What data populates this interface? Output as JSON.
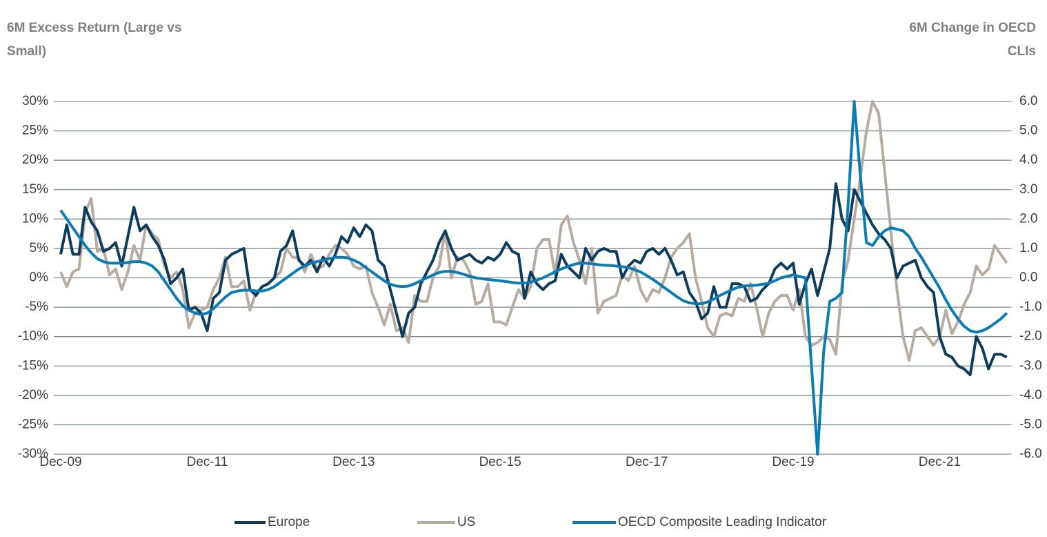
{
  "chart_data": {
    "type": "line",
    "y_label": "6M Excess Return (Large vs Small)",
    "y2_label": "6M Change in OECD CLIs",
    "categories": [
      "Dec-09",
      null,
      null,
      null,
      null,
      null,
      null,
      null,
      null,
      null,
      null,
      null,
      null,
      null,
      null,
      null,
      null,
      null,
      null,
      null,
      null,
      null,
      null,
      null,
      "Dec-11",
      null,
      null,
      null,
      null,
      null,
      null,
      null,
      null,
      null,
      null,
      null,
      null,
      null,
      null,
      null,
      null,
      null,
      null,
      null,
      null,
      null,
      null,
      null,
      "Dec-13",
      null,
      null,
      null,
      null,
      null,
      null,
      null,
      null,
      null,
      null,
      null,
      null,
      null,
      null,
      null,
      null,
      null,
      null,
      null,
      null,
      null,
      null,
      null,
      "Dec-15",
      null,
      null,
      null,
      null,
      null,
      null,
      null,
      null,
      null,
      null,
      null,
      null,
      null,
      null,
      null,
      null,
      null,
      null,
      null,
      null,
      null,
      null,
      null,
      "Dec-17",
      null,
      null,
      null,
      null,
      null,
      null,
      null,
      null,
      null,
      null,
      null,
      null,
      null,
      null,
      null,
      null,
      null,
      null,
      null,
      null,
      null,
      null,
      null,
      "Dec-19",
      null,
      null,
      null,
      null,
      null,
      null,
      null,
      null,
      null,
      null,
      null,
      null,
      null,
      null,
      null,
      null,
      null,
      null,
      null,
      null,
      null,
      null,
      null,
      "Dec-21",
      null,
      null,
      null,
      null,
      null,
      null,
      null,
      null,
      null,
      null,
      null
    ],
    "series": [
      {
        "name": "Europe",
        "color": "#0d3c5c",
        "values": [
          4,
          9,
          4,
          4,
          12,
          9.5,
          8,
          4.5,
          5,
          6,
          2,
          7,
          12,
          8,
          9,
          7,
          5.5,
          3,
          -1,
          0,
          1.5,
          -5.5,
          -5,
          -6,
          -9,
          -3.5,
          -2.5,
          3,
          4,
          4.5,
          5,
          -2,
          -3,
          -1.5,
          -1,
          0,
          4.5,
          5.5,
          8,
          3,
          2,
          3,
          1,
          3.5,
          2,
          4,
          7,
          6,
          8.5,
          7,
          9,
          8,
          3,
          2,
          -2,
          -6,
          -10,
          -6,
          -5,
          -1,
          1,
          3,
          6,
          8,
          5,
          3,
          3.5,
          4,
          3,
          2.5,
          3.5,
          3,
          4,
          6,
          4.5,
          4,
          -3.5,
          1,
          -1,
          -2,
          -1,
          -0.5,
          4,
          2,
          1,
          0,
          5,
          3,
          4.5,
          5,
          4.5,
          4.5,
          0,
          2,
          3,
          2.5,
          4.5,
          5,
          4,
          5,
          3,
          0.5,
          1,
          -2.5,
          -4,
          -7,
          -6,
          -1.5,
          -5,
          -5,
          -1,
          -1,
          -1.5,
          -4,
          -3.5,
          -2,
          -1,
          1.5,
          2.5,
          1.5,
          2.5,
          -4.5,
          -1,
          1.5,
          -3,
          1,
          5,
          16,
          10,
          8,
          15,
          13,
          11,
          9,
          7.5,
          6.5,
          5,
          0,
          2,
          2.5,
          3,
          0,
          -1.5,
          -2.5,
          -10,
          -13,
          -13.5,
          -15,
          -15.5,
          -16.5,
          -10,
          -12,
          -15.5,
          -13,
          -13,
          -13.5
        ]
      },
      {
        "name": "US",
        "color": "#b7aca2",
        "values": [
          1,
          -1.5,
          1,
          1.5,
          11,
          13.5,
          4.5,
          5,
          0.5,
          1.5,
          -2,
          1,
          5.5,
          3,
          9,
          7.5,
          6.5,
          2,
          0,
          1,
          -2,
          -8.5,
          -6,
          -5.5,
          -5,
          -2,
          0,
          3.5,
          -1.5,
          -1.5,
          -0.5,
          -5.5,
          -2.5,
          -1.5,
          -1,
          0,
          1,
          5,
          3.5,
          3.5,
          1,
          4,
          1.5,
          2,
          4,
          5.5,
          5,
          4,
          2,
          1.5,
          2,
          -2.5,
          -5,
          -8,
          -4.5,
          -9,
          -8.5,
          -11,
          -3,
          -4,
          -4,
          0,
          2,
          8,
          0,
          3.5,
          3,
          1,
          -4.5,
          -4,
          -1,
          -7.5,
          -7.5,
          -8,
          -5,
          -2,
          -3.5,
          -1.5,
          5,
          6.5,
          6.5,
          0.5,
          9,
          10.5,
          6,
          3,
          -1,
          5,
          -6,
          -4,
          -3.5,
          -3,
          0.5,
          -0.5,
          2,
          -2,
          -4,
          -2,
          -2.5,
          0,
          3.5,
          5,
          6,
          7.5,
          0,
          -4,
          -8.5,
          -10,
          -6.5,
          -6,
          -6.5,
          -3.5,
          -4,
          -1,
          -5,
          -10,
          -6,
          -4,
          -3,
          -3,
          -5.5,
          -2,
          -10,
          -11.5,
          -11,
          -10,
          -10.5,
          -13,
          -1,
          3,
          10,
          17,
          25,
          30,
          28,
          18,
          8,
          -2,
          -10,
          -14,
          -9,
          -8.5,
          -10,
          -11.5,
          -10,
          -5.5,
          -9.5,
          -7.5,
          -4.5,
          -2.5,
          2,
          0.5,
          1.5,
          5.5,
          4,
          2.5
        ]
      },
      {
        "name": "OECD Composite Leading Indicator",
        "color": "#0b7bb1",
        "axis": "y2",
        "values": [
          2.3,
          2.0,
          1.7,
          1.4,
          1.1,
          0.85,
          0.65,
          0.55,
          0.5,
          0.5,
          0.5,
          0.52,
          0.55,
          0.55,
          0.5,
          0.4,
          0.2,
          -0.1,
          -0.4,
          -0.7,
          -0.95,
          -1.1,
          -1.2,
          -1.25,
          -1.2,
          -1.05,
          -0.85,
          -0.65,
          -0.5,
          -0.45,
          -0.42,
          -0.42,
          -0.45,
          -0.45,
          -0.4,
          -0.3,
          -0.15,
          0,
          0.15,
          0.3,
          0.4,
          0.5,
          0.55,
          0.6,
          0.65,
          0.7,
          0.7,
          0.68,
          0.6,
          0.5,
          0.35,
          0.2,
          0.05,
          -0.1,
          -0.22,
          -0.28,
          -0.3,
          -0.28,
          -0.2,
          -0.1,
          0,
          0.1,
          0.18,
          0.22,
          0.22,
          0.18,
          0.12,
          0.05,
          0,
          -0.03,
          -0.06,
          -0.08,
          -0.1,
          -0.13,
          -0.16,
          -0.18,
          -0.18,
          -0.15,
          -0.08,
          0,
          0.1,
          0.2,
          0.3,
          0.38,
          0.45,
          0.5,
          0.5,
          0.48,
          0.45,
          0.43,
          0.42,
          0.4,
          0.38,
          0.35,
          0.28,
          0.2,
          0.08,
          -0.05,
          -0.2,
          -0.35,
          -0.5,
          -0.65,
          -0.78,
          -0.85,
          -0.88,
          -0.88,
          -0.82,
          -0.72,
          -0.6,
          -0.5,
          -0.4,
          -0.32,
          -0.28,
          -0.26,
          -0.25,
          -0.22,
          -0.18,
          -0.1,
          0,
          0.05,
          0.1,
          0.05,
          0,
          -3,
          -6,
          -2.5,
          -0.8,
          -0.7,
          -0.5,
          2.5,
          6,
          3.5,
          1.2,
          1.1,
          1.4,
          1.6,
          1.7,
          1.65,
          1.6,
          1.4,
          1,
          0.7,
          0.35,
          0,
          -0.35,
          -0.75,
          -1.1,
          -1.4,
          -1.65,
          -1.8,
          -1.85,
          -1.8,
          -1.7,
          -1.55,
          -1.4,
          -1.2
        ]
      }
    ],
    "ylim": [
      -30,
      30
    ],
    "yticks": [
      {
        "value": -30,
        "label": "-30%"
      },
      {
        "value": -25,
        "label": "-25%"
      },
      {
        "value": -20,
        "label": "-20%"
      },
      {
        "value": -15,
        "label": "-15%"
      },
      {
        "value": -10,
        "label": "-10%"
      },
      {
        "value": -5,
        "label": "-5%"
      },
      {
        "value": 0,
        "label": "0%"
      },
      {
        "value": 5,
        "label": "5%"
      },
      {
        "value": 10,
        "label": "10%"
      },
      {
        "value": 15,
        "label": "15%"
      },
      {
        "value": 20,
        "label": "20%"
      },
      {
        "value": 25,
        "label": "25%"
      },
      {
        "value": 30,
        "label": "30%"
      }
    ],
    "y2lim": [
      -6,
      6
    ],
    "y2ticks": [
      {
        "value": -6,
        "label": "-6.0"
      },
      {
        "value": -5,
        "label": "-5.0"
      },
      {
        "value": -4,
        "label": "-4.0"
      },
      {
        "value": -3,
        "label": "-3.0"
      },
      {
        "value": -2,
        "label": "-2.0"
      },
      {
        "value": -1,
        "label": "-1.0"
      },
      {
        "value": 0,
        "label": "0.0"
      },
      {
        "value": 1,
        "label": "1.0"
      },
      {
        "value": 2,
        "label": "2.0"
      },
      {
        "value": 3,
        "label": "3.0"
      },
      {
        "value": 4,
        "label": "4.0"
      },
      {
        "value": 5,
        "label": "5.0"
      },
      {
        "value": 6,
        "label": "6.0"
      }
    ],
    "grid": true,
    "legend": "bottom"
  }
}
